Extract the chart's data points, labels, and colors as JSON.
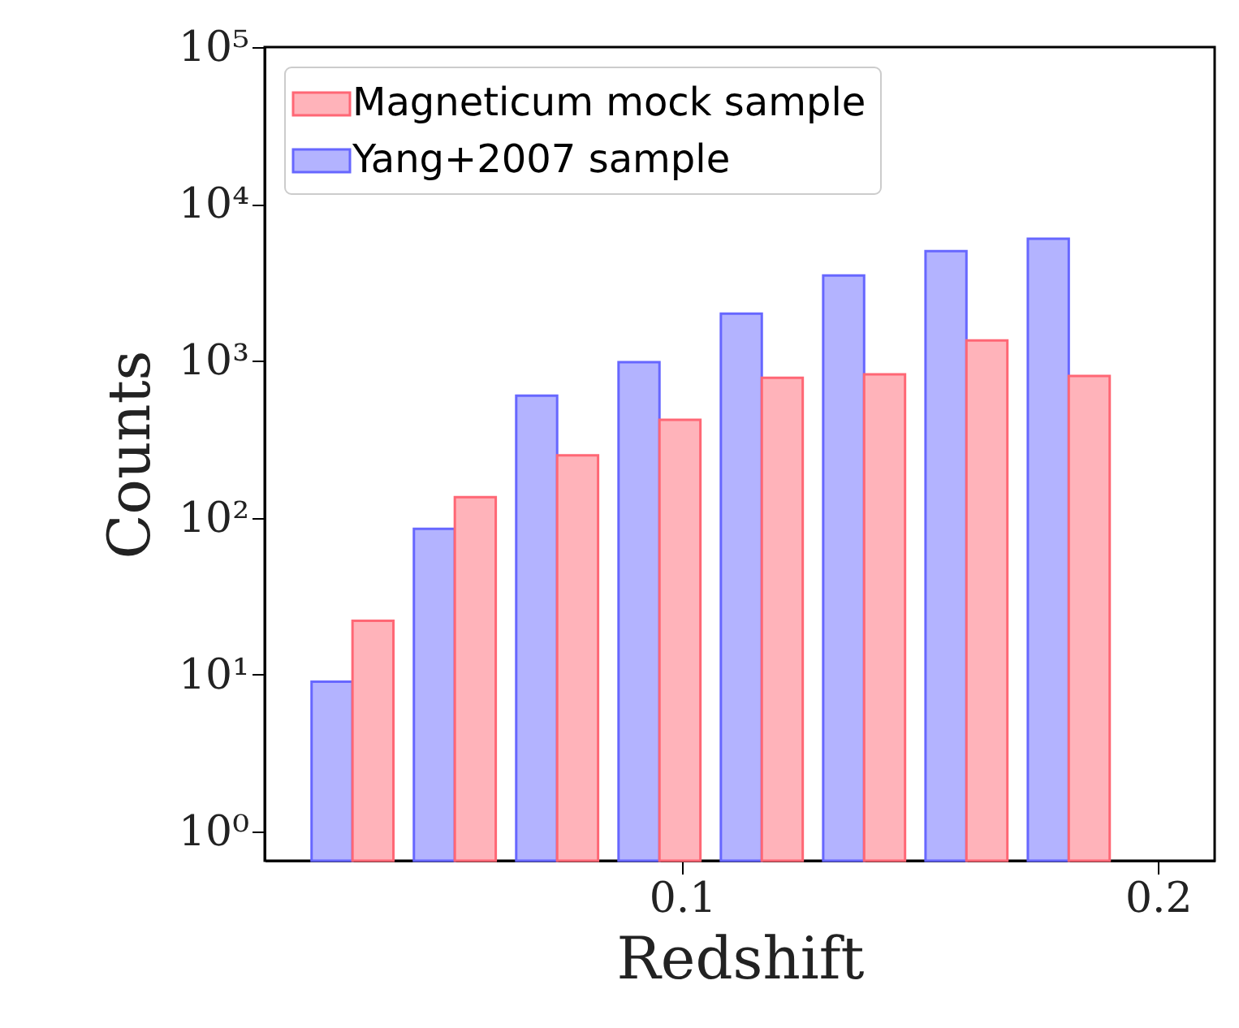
{
  "chart_data": {
    "type": "histogram",
    "xlabel": "Redshift",
    "ylabel": "Counts",
    "bins": [
      0.02,
      0.0415,
      0.063,
      0.0845,
      0.106,
      0.1275,
      0.149,
      0.1705,
      0.192
    ],
    "series": [
      {
        "name": "Yang+2007 sample",
        "color": "#b3b3ff",
        "values": [
          9,
          85,
          600,
          980,
          2000,
          3500,
          5000,
          6000
        ]
      },
      {
        "name": "Magneticum mock sample",
        "color": "#ffb3ba",
        "values": [
          22,
          135,
          250,
          420,
          780,
          820,
          1350,
          800
        ]
      }
    ],
    "log": "y",
    "xlim": [
      0.0123,
      0.2119
    ],
    "xticks": [
      0.1,
      0.2
    ],
    "ylim": [
      0.65,
      100000
    ],
    "yticks": [
      {
        "value": 1,
        "label": "10⁰"
      },
      {
        "value": 10,
        "label": "10¹"
      },
      {
        "value": 100,
        "label": "10²"
      },
      {
        "value": 1000,
        "label": "10³"
      },
      {
        "value": 10000,
        "label": "10⁴"
      },
      {
        "value": 100000,
        "label": "10⁵"
      }
    ],
    "legend": "top left",
    "grid": false
  }
}
